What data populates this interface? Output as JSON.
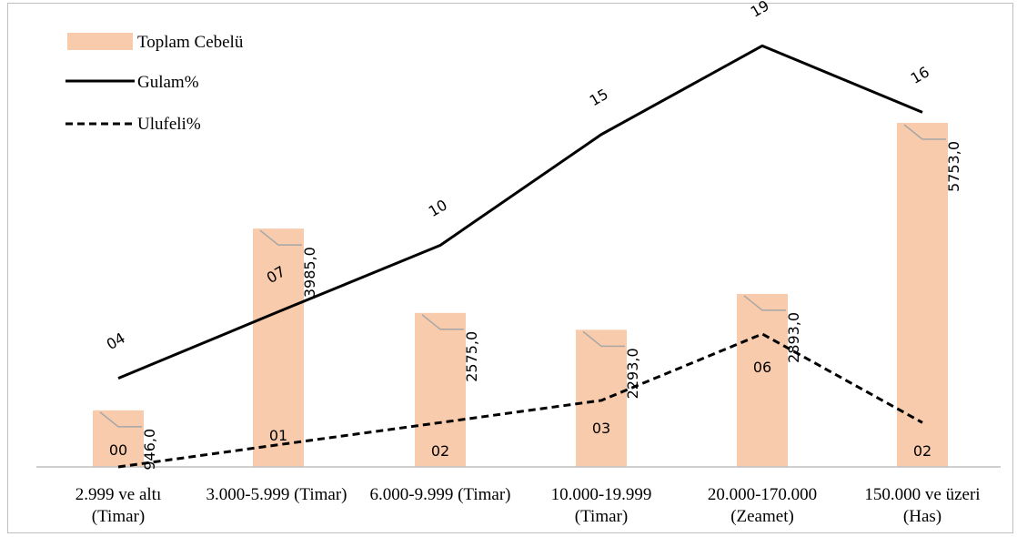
{
  "chart_data": {
    "type": "bar",
    "categories": [
      [
        "2.999 ve altı",
        "(Timar)"
      ],
      [
        "3.000-5.999 (Timar)"
      ],
      [
        "6.000-9.999 (Timar)"
      ],
      [
        "10.000-19.999",
        "(Timar)"
      ],
      [
        "20.000-170.000",
        "(Zeamet)"
      ],
      [
        "150.000 ve üzeri",
        "(Has)"
      ]
    ],
    "series": [
      {
        "name": "Toplam Cebelü",
        "kind": "bar",
        "values": [
          946.0,
          3985.0,
          2575.0,
          2293.0,
          2893.0,
          5753.0
        ],
        "labels": [
          "946,0",
          "3985,0",
          "2575,0",
          "2293,0",
          "2893,0",
          "5753,0"
        ],
        "color": "#f8cbad"
      },
      {
        "name": "Gulam%",
        "kind": "line",
        "style": "solid",
        "values": [
          4,
          7,
          10,
          15,
          19,
          16
        ],
        "labels": [
          "04",
          "07",
          "10",
          "15",
          "19",
          "16"
        ],
        "color": "#000000"
      },
      {
        "name": "Ulufeli%",
        "kind": "line",
        "style": "dashed",
        "values": [
          0,
          1,
          2,
          3,
          6,
          2
        ],
        "labels": [
          "00",
          "01",
          "02",
          "03",
          "06",
          "02"
        ],
        "color": "#000000"
      }
    ],
    "legend": "top-left",
    "grid": false,
    "ylim_bars": [
      0,
      7000
    ],
    "ylim_lines": [
      0,
      22
    ]
  }
}
